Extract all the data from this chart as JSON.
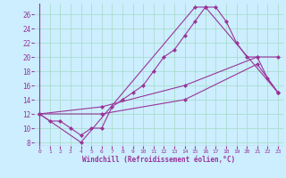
{
  "xlabel": "Windchill (Refroidissement éolien,°C)",
  "background_color": "#cceeff",
  "grid_color": "#aaddcc",
  "line_color": "#993399",
  "xlim": [
    -0.5,
    23.5
  ],
  "ylim": [
    7.5,
    27.5
  ],
  "yticks": [
    8,
    10,
    12,
    14,
    16,
    18,
    20,
    22,
    24,
    26
  ],
  "xticks": [
    0,
    1,
    2,
    3,
    4,
    5,
    6,
    7,
    8,
    9,
    10,
    11,
    12,
    13,
    14,
    15,
    16,
    17,
    18,
    19,
    20,
    21,
    22,
    23
  ],
  "series1_x": [
    0,
    1,
    2,
    3,
    4,
    5,
    6,
    7,
    8,
    9,
    10,
    11,
    12,
    13,
    14,
    15,
    16,
    17,
    18,
    19,
    20,
    21,
    22,
    23
  ],
  "series1_y": [
    12,
    11,
    11,
    10,
    9,
    10,
    10,
    13,
    14,
    15,
    16,
    18,
    20,
    21,
    23,
    25,
    27,
    27,
    25,
    22,
    20,
    20,
    17,
    15
  ],
  "series2_x": [
    0,
    4,
    15,
    16,
    23
  ],
  "series2_y": [
    12,
    8,
    27,
    27,
    15
  ],
  "series3_x": [
    0,
    6,
    14,
    21,
    23
  ],
  "series3_y": [
    12,
    13,
    16,
    20,
    20
  ],
  "series4_x": [
    0,
    6,
    14,
    21,
    23
  ],
  "series4_y": [
    12,
    12,
    14,
    19,
    15
  ]
}
